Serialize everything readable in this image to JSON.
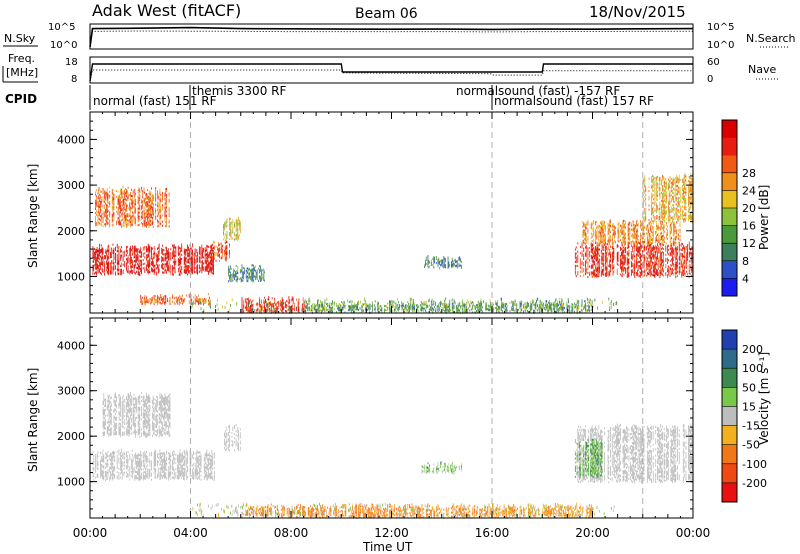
{
  "header": {
    "radar": "Adak West (fitACF)",
    "beam": "Beam 06",
    "date": "18/Nov/2015"
  },
  "nsky_panel": {
    "left_label": "N.Sky",
    "right_label": "N.Search",
    "tick_top": "10^5",
    "tick_bottom": "10^0"
  },
  "freq_panel": {
    "left_label": "Freq.",
    "left_unit": "[MHz]",
    "left_tick_top": "18",
    "left_tick_bottom": "8",
    "right_label": "Nave",
    "right_tick_top": "60",
    "right_tick_bottom": "0"
  },
  "cpid": {
    "label": "CPID",
    "segments": [
      "normal (fast) 151 RF",
      "themis 3300 RF",
      "normalsound (fast) -157 RF",
      "normalsound (fast) 157 RF"
    ]
  },
  "axes": {
    "ylabel": "Slant Range [km]",
    "xlabel": "Time UT",
    "x_ticks": [
      "00:00",
      "04:00",
      "08:00",
      "12:00",
      "16:00",
      "20:00",
      "00:00"
    ],
    "y_ticks": [
      "1000",
      "2000",
      "3000",
      "4000"
    ]
  },
  "power_scale": {
    "label": "Power [dB]",
    "ticks": [
      "4",
      "8",
      "12",
      "16",
      "20",
      "24",
      "28"
    ],
    "colors": [
      "#1c1cf0",
      "#2b50c8",
      "#3c7f5c",
      "#4a9a3a",
      "#8cc33a",
      "#e8c020",
      "#f0901c",
      "#f05a14",
      "#e81c10",
      "#d80000"
    ]
  },
  "velocity_scale": {
    "label": "Velocity [m s⁻¹]",
    "ticks": [
      "200",
      "100",
      "50",
      "15",
      "-15",
      "-50",
      "-100",
      "-200"
    ],
    "colors": [
      "#2040b0",
      "#2e6a8a",
      "#3c8a50",
      "#7ac84a",
      "#bdbdbd",
      "#f0b020",
      "#f07818",
      "#f04a14",
      "#e81010"
    ]
  },
  "chart_data": {
    "type": "heatmap",
    "x_range": [
      "00:00",
      "24:00"
    ],
    "y_range_km": [
      200,
      4600
    ],
    "y_ticks_km": [
      1000,
      2000,
      3000,
      4000
    ],
    "guide_lines_ut": [
      4,
      16,
      22
    ],
    "nsky": {
      "scale": "log",
      "range": [
        1,
        100000
      ],
      "series": [
        {
          "name": "N.Sky",
          "t": [
            0,
            0.1,
            2,
            4,
            6,
            8,
            10,
            12,
            14,
            16,
            18,
            20,
            22,
            24
          ],
          "values": [
            1,
            40000,
            50000,
            70000,
            40000,
            35000,
            30000,
            28000,
            30000,
            25000,
            30000,
            28000,
            35000,
            40000
          ]
        },
        {
          "name": "N.Search",
          "t": [
            0,
            0.1,
            2,
            4,
            6,
            8,
            10,
            12,
            14,
            16,
            18,
            20,
            22,
            24
          ],
          "values": [
            1,
            8000,
            10000,
            9000,
            8000,
            7000,
            7000,
            6500,
            7000,
            6000,
            7000,
            7500,
            8000,
            8500
          ]
        }
      ]
    },
    "frequency": {
      "range_mhz": [
        8,
        18
      ],
      "series": [
        {
          "name": "Freq",
          "t": [
            0,
            0.1,
            10,
            10.05,
            18,
            18.05,
            24
          ],
          "values": [
            8,
            16.5,
            16.5,
            12.5,
            12.5,
            16.5,
            16.5
          ]
        }
      ]
    },
    "nave": {
      "range": [
        0,
        60
      ],
      "series": [
        {
          "name": "Nave",
          "t": [
            0,
            0.1,
            10,
            10.05,
            16,
            16.05,
            18,
            18.05,
            24
          ],
          "values": [
            0,
            30,
            30,
            22,
            20,
            16,
            16,
            28,
            28
          ]
        }
      ]
    },
    "power_echoes": [
      {
        "t0": 0.1,
        "t1": 5.0,
        "r0": 1050,
        "r1": 1650,
        "p": 28,
        "note": "main band"
      },
      {
        "t0": 4.8,
        "t1": 5.6,
        "r0": 1350,
        "r1": 1750,
        "p": 24
      },
      {
        "t0": 0.2,
        "t1": 3.2,
        "r0": 2100,
        "r1": 2900,
        "p": 22,
        "note": "upper band"
      },
      {
        "t0": 5.3,
        "t1": 6.0,
        "r0": 1800,
        "r1": 2250,
        "p": 16
      },
      {
        "t0": 5.5,
        "t1": 7.0,
        "r0": 900,
        "r1": 1200,
        "p": 8
      },
      {
        "t0": 6.0,
        "t1": 8.6,
        "r0": 220,
        "r1": 500,
        "p": 26
      },
      {
        "t0": 2.0,
        "t1": 4.8,
        "r0": 400,
        "r1": 560,
        "p": 22
      },
      {
        "t0": 8.5,
        "t1": 20.0,
        "r0": 220,
        "r1": 430,
        "p": 10
      },
      {
        "t0": 13.2,
        "t1": 14.8,
        "r0": 1200,
        "r1": 1400,
        "p": 8
      },
      {
        "t0": 19.3,
        "t1": 24.0,
        "r0": 1000,
        "r1": 1700,
        "p": 26
      },
      {
        "t0": 19.6,
        "t1": 23.5,
        "r0": 1700,
        "r1": 2200,
        "p": 20
      },
      {
        "t0": 22.0,
        "t1": 24.0,
        "r0": 2200,
        "r1": 3200,
        "p": 18
      }
    ],
    "velocity_echoes": [
      {
        "t0": 0.1,
        "t1": 5.0,
        "r0": 1050,
        "r1": 1650,
        "v": 0
      },
      {
        "t0": 0.5,
        "t1": 3.2,
        "r0": 2000,
        "r1": 2900,
        "v": 0
      },
      {
        "t0": 5.3,
        "t1": 6.0,
        "r0": 1700,
        "r1": 2200,
        "v": 0
      },
      {
        "t0": 19.4,
        "t1": 24.0,
        "r0": 1000,
        "r1": 2200,
        "v": 0
      },
      {
        "t0": 19.3,
        "t1": 20.4,
        "r0": 1100,
        "r1": 1900,
        "v": 30
      },
      {
        "t0": 6.0,
        "t1": 16.0,
        "r0": 220,
        "r1": 460,
        "v": -40
      },
      {
        "t0": 16.0,
        "t1": 20.0,
        "r0": 220,
        "r1": 460,
        "v": -30
      },
      {
        "t0": 13.2,
        "t1": 14.8,
        "r0": 1200,
        "r1": 1380,
        "v": 20
      }
    ]
  }
}
